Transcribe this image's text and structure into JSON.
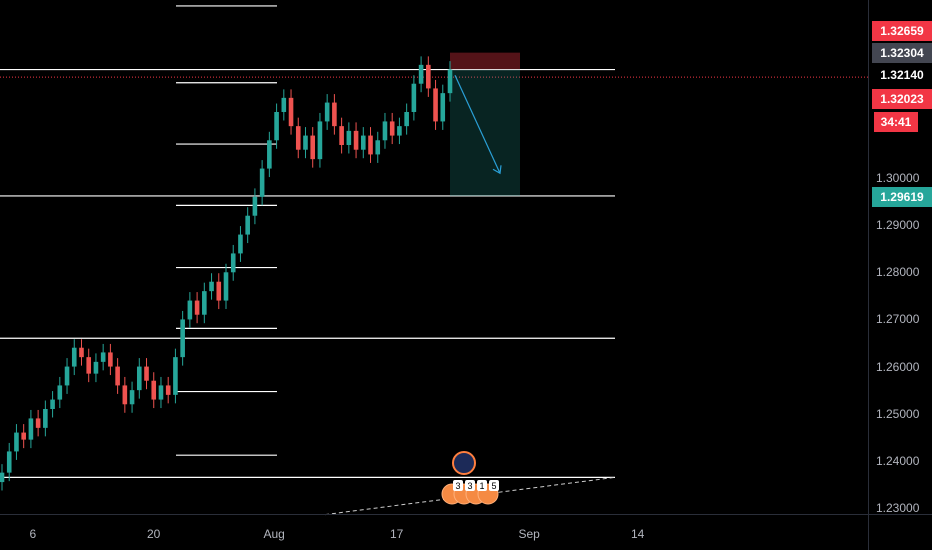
{
  "chart_data": {
    "type": "candlestick",
    "x_labels": [
      "6",
      "20",
      "Aug",
      "17",
      "Sep",
      "14"
    ],
    "y_ticks": [
      "1.30000",
      "1.29000",
      "1.28000",
      "1.27000",
      "1.26000",
      "1.25000",
      "1.24000",
      "1.23000"
    ],
    "ylim": [
      1.2295,
      1.3295
    ],
    "price_labels": [
      {
        "label": "1.32659",
        "value": 1.32659,
        "color": "#f23645",
        "text_color": "#ffffff"
      },
      {
        "label": "1.32304",
        "value": 1.32304,
        "color": "#434651",
        "text_color": "#ffffff"
      },
      {
        "label": "1.32140",
        "value": 1.3214,
        "color": "#000000",
        "text_color": "#ffffff"
      },
      {
        "label": "1.32023",
        "value": 1.32023,
        "color": "#f23645",
        "text_color": "#ffffff"
      },
      {
        "label": "34:41",
        "value": 1.3178,
        "color": "#f23645",
        "text_color": "#ffffff"
      },
      {
        "label": "1.29619",
        "value": 1.29619,
        "color": "#26a69a",
        "text_color": "#ffffff"
      }
    ],
    "horizontal_levels": [
      1.323,
      1.2962,
      1.266,
      1.2365
    ],
    "short_levels": [
      1.3365,
      1.3202,
      1.3072,
      1.2942,
      1.281,
      1.2681,
      1.2547,
      1.2412
    ],
    "current_price": 1.3214,
    "position": {
      "side": "short",
      "entry": 1.32304,
      "stop": 1.32659,
      "target": 1.29619
    },
    "projection_arrow": {
      "from": 1.3218,
      "to": 1.301
    },
    "trendline": {
      "from": 1.2286,
      "to": 1.2365
    },
    "event_markers": [
      "3",
      "3",
      "1",
      "5"
    ],
    "closes": [
      1.2375,
      1.242,
      1.246,
      1.2445,
      1.249,
      1.247,
      1.251,
      1.253,
      1.256,
      1.26,
      1.264,
      1.262,
      1.2585,
      1.261,
      1.263,
      1.26,
      1.256,
      1.252,
      1.255,
      1.26,
      1.257,
      1.253,
      1.256,
      1.254,
      1.262,
      1.27,
      1.274,
      1.271,
      1.276,
      1.278,
      1.274,
      1.28,
      1.284,
      1.288,
      1.292,
      1.296,
      1.302,
      1.308,
      1.314,
      1.317,
      1.311,
      1.306,
      1.309,
      1.304,
      1.312,
      1.316,
      1.311,
      1.307,
      1.31,
      1.306,
      1.309,
      1.305,
      1.308,
      1.312,
      1.309,
      1.311,
      1.314,
      1.32,
      1.324,
      1.319,
      1.312,
      1.318,
      1.323
    ]
  }
}
